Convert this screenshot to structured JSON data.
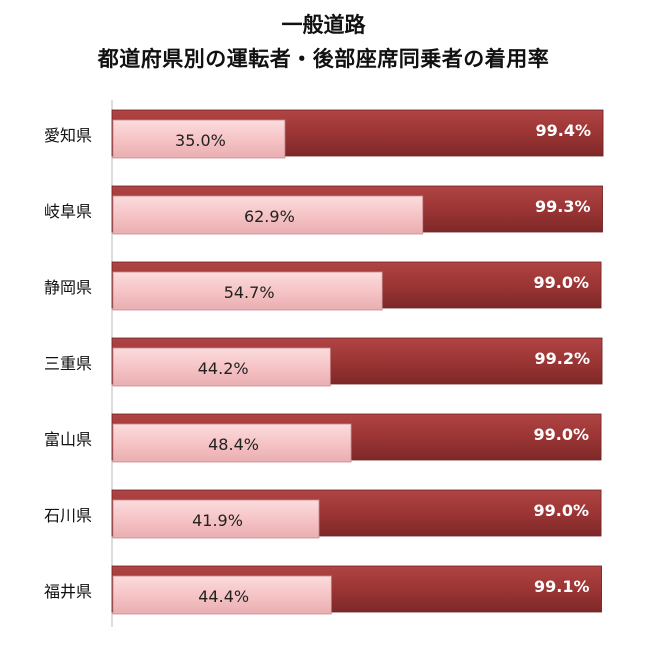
{
  "title_line1": "一般道路",
  "title_line2": "都道府県別の運転者・後部座席同乗者の着用率",
  "colors": {
    "driver": "#9c3535",
    "rear": "#f6c4c6"
  },
  "chart_data": {
    "type": "bar",
    "orientation": "horizontal",
    "title": "一般道路 都道府県別の運転者・後部座席同乗者の着用率",
    "categories": [
      "愛知県",
      "岐阜県",
      "静岡県",
      "三重県",
      "富山県",
      "石川県",
      "福井県"
    ],
    "series": [
      {
        "values": [
          99.4,
          99.3,
          99.0,
          99.2,
          99.0,
          99.0,
          99.1
        ],
        "labels": [
          "99.4%",
          "99.3%",
          "99.0%",
          "99.2%",
          "99.0%",
          "99.0%",
          "99.1%"
        ]
      },
      {
        "values": [
          35.0,
          62.9,
          54.7,
          44.2,
          48.4,
          41.9,
          44.4
        ],
        "labels": [
          "35.0%",
          "62.9%",
          "54.7%",
          "44.2%",
          "48.4%",
          "41.9%",
          "44.4%"
        ]
      }
    ],
    "xlim": [
      0,
      100
    ],
    "grid": false,
    "legend": "none"
  }
}
